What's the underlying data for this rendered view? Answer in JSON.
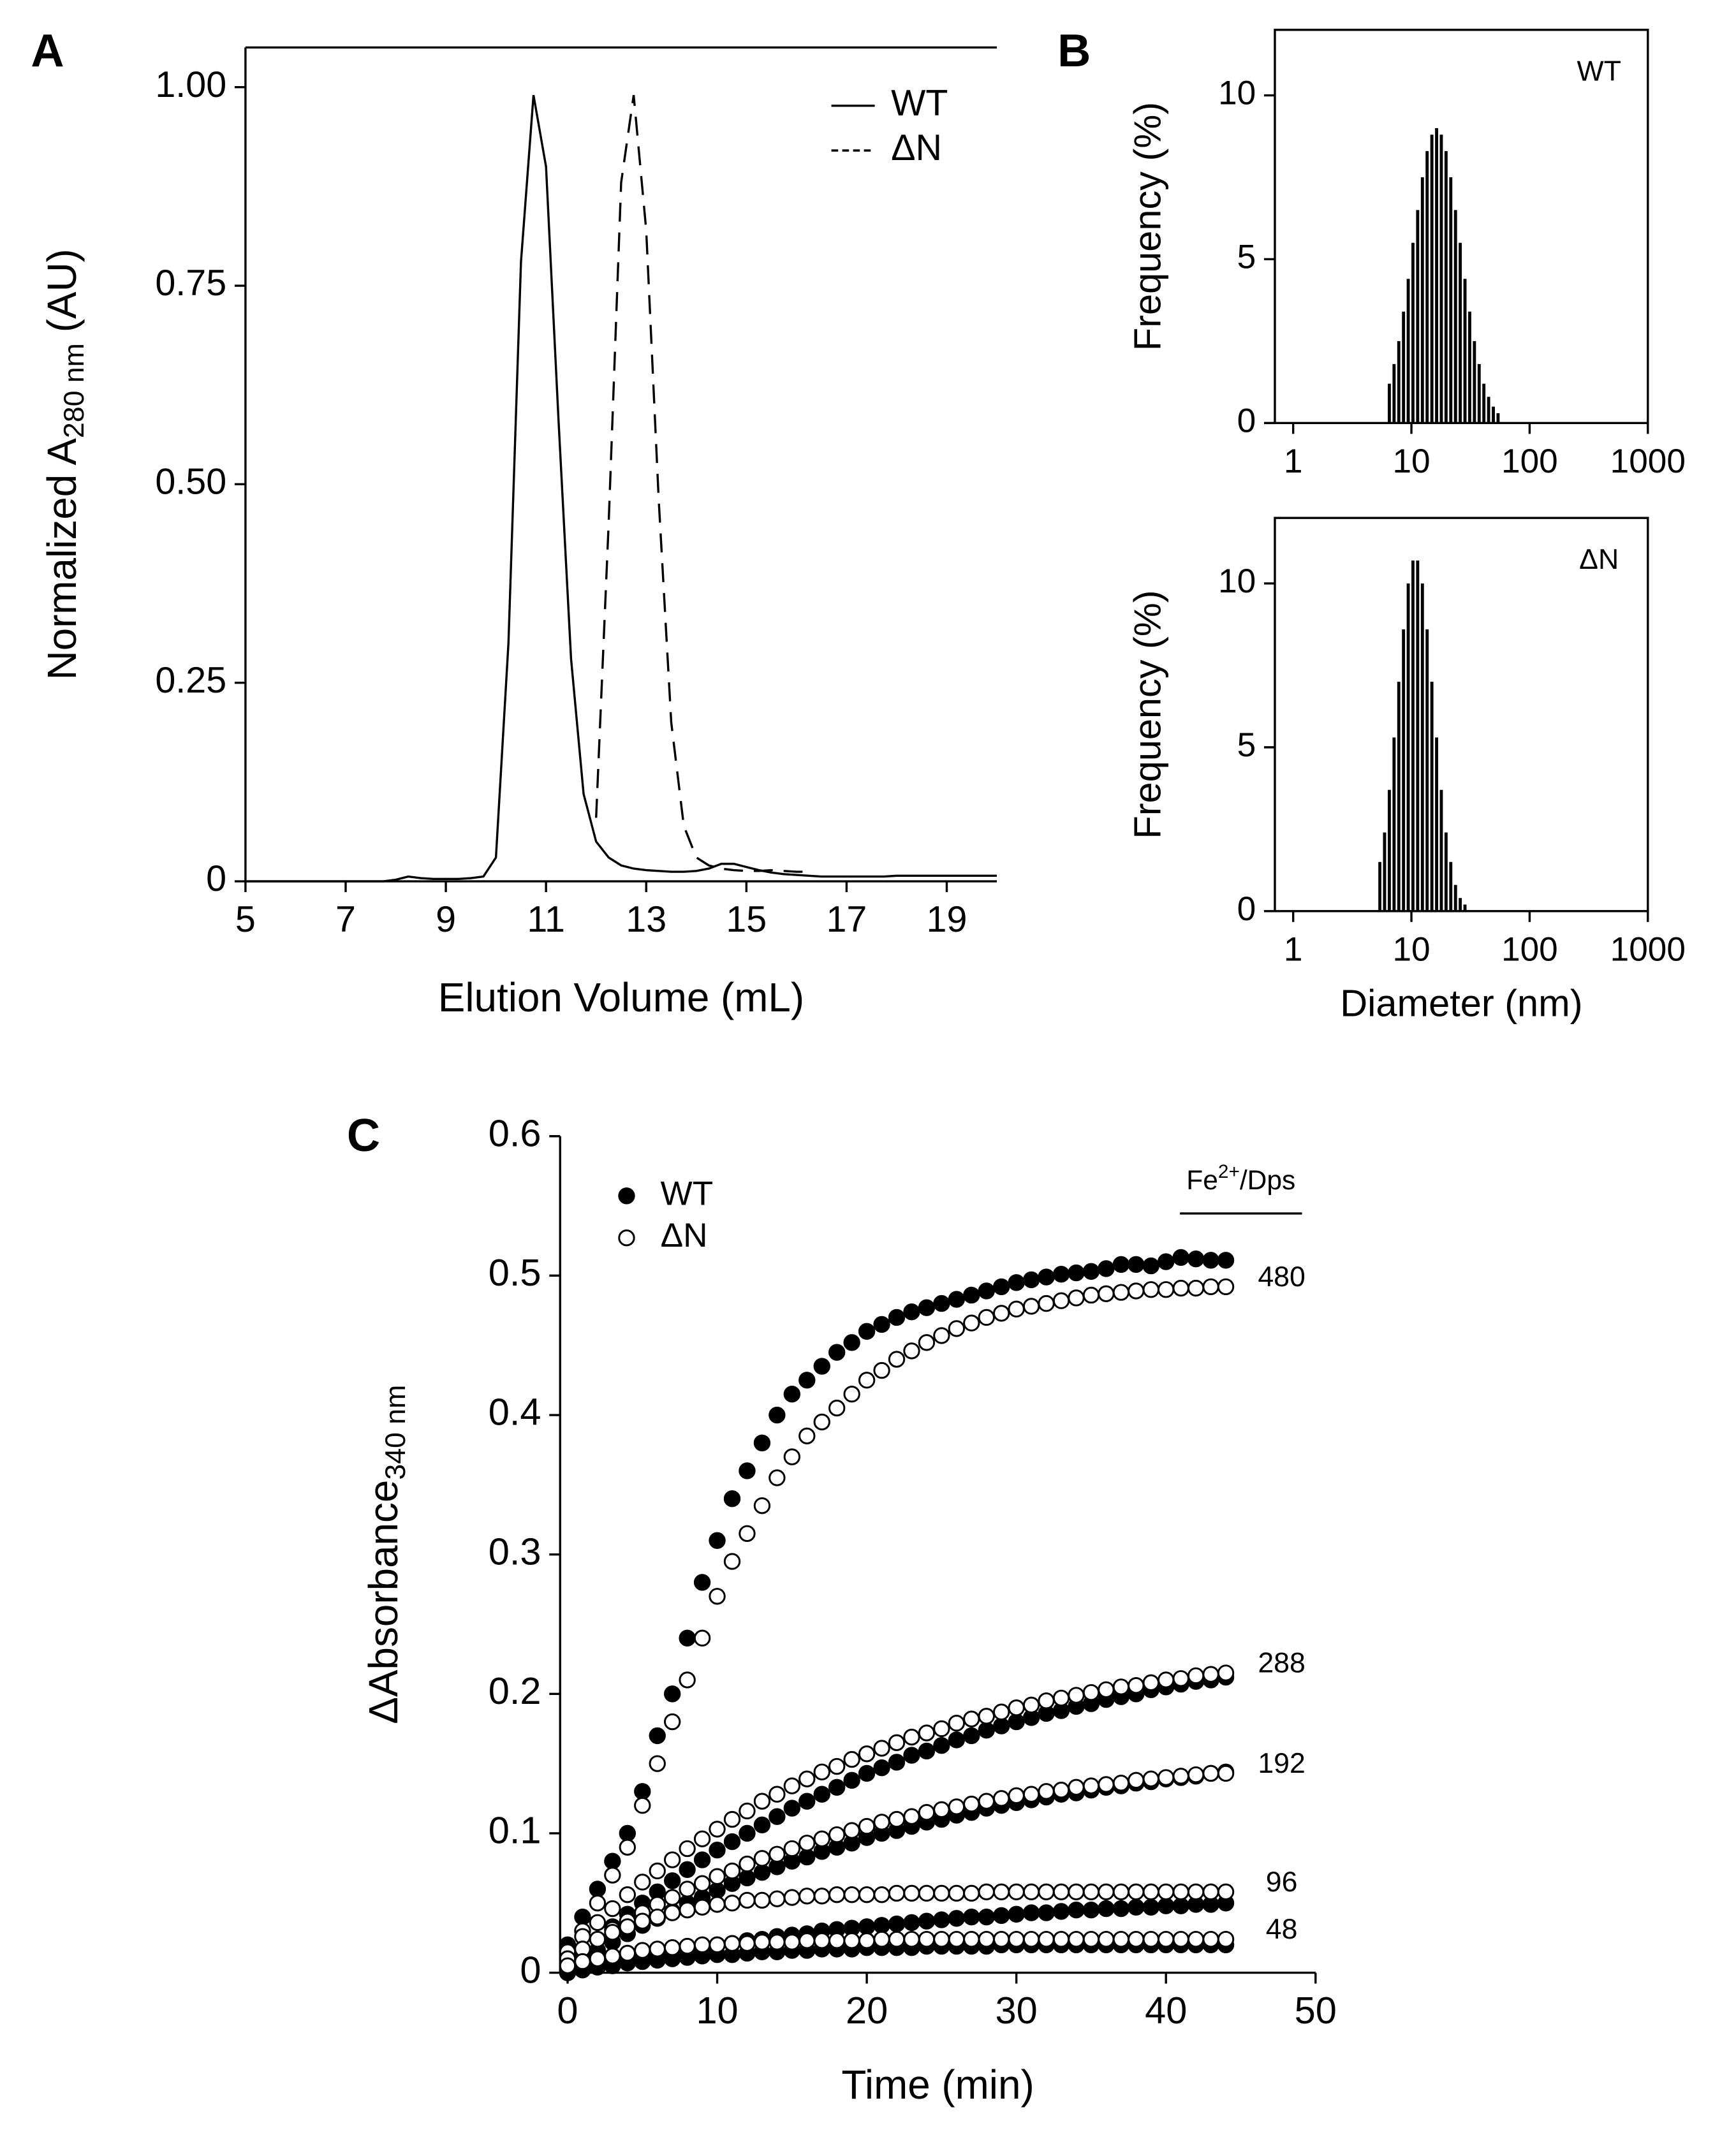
{
  "chart_data": [
    {
      "type": "line",
      "panel_label": "A",
      "xlabel": "Elution Volume (mL)",
      "ylabel": [
        "Normalized A",
        "280 nm",
        "(AU)"
      ],
      "xlim": [
        5,
        20
      ],
      "ylim": [
        0,
        1.05
      ],
      "xticks": [
        5,
        7,
        9,
        11,
        13,
        15,
        17,
        19
      ],
      "yticks": [
        0,
        0.25,
        {
          "value": 0.5,
          "label": "0.50"
        },
        0.75,
        {
          "value": 1,
          "label": "1.00"
        }
      ],
      "legend": "upper right",
      "x": [
        5,
        5.25,
        5.5,
        5.75,
        6,
        6.25,
        6.5,
        6.75,
        7,
        7.25,
        7.5,
        7.75,
        8,
        8.25,
        8.5,
        8.75,
        9,
        9.25,
        9.5,
        9.75,
        10,
        10.25,
        10.5,
        10.75,
        11,
        11.25,
        11.5,
        11.75,
        12,
        12.25,
        12.5,
        12.75,
        13,
        13.25,
        13.5,
        13.75,
        14,
        14.25,
        14.5,
        14.75,
        15,
        15.25,
        15.5,
        15.75,
        16,
        16.25,
        16.5,
        16.75,
        17,
        17.25,
        17.5,
        17.75,
        18,
        18.25,
        18.5,
        18.75,
        19,
        19.25,
        19.5,
        19.75,
        20
      ],
      "series": [
        {
          "name": "WT",
          "color": "#000000",
          "line_style": "solid",
          "values": [
            0,
            0,
            0,
            0,
            0,
            0,
            0,
            0,
            0,
            0,
            0,
            0,
            0.002,
            0.006,
            0.004,
            0.003,
            0.003,
            0.003,
            0.004,
            0.006,
            0.03,
            0.3,
            0.78,
            0.99,
            0.9,
            0.58,
            0.28,
            0.11,
            0.05,
            0.03,
            0.02,
            0.016,
            0.014,
            0.013,
            0.012,
            0.012,
            0.013,
            0.016,
            0.022,
            0.022,
            0.018,
            0.014,
            0.011,
            0.009,
            0.008,
            0.007,
            0.006,
            0.006,
            0.006,
            0.006,
            0.006,
            0.006,
            0.007,
            0.007,
            0.007,
            0.007,
            0.007,
            0.007,
            0.007,
            0.007,
            0.007
          ]
        },
        {
          "name": "ΔN",
          "color": "#000000",
          "line_style": "dashed",
          "values": [
            null,
            null,
            null,
            null,
            null,
            null,
            null,
            null,
            null,
            null,
            null,
            null,
            null,
            null,
            null,
            null,
            null,
            null,
            null,
            null,
            null,
            null,
            null,
            null,
            null,
            null,
            null,
            null,
            0.08,
            0.45,
            0.88,
            0.99,
            0.82,
            0.48,
            0.2,
            0.07,
            0.03,
            0.02,
            0.016,
            0.014,
            0.013,
            0.013,
            0.014,
            0.013,
            0.012,
            0.012,
            null,
            null,
            null,
            null,
            null,
            null,
            null,
            null,
            null,
            null,
            null,
            null,
            null,
            null,
            null
          ]
        }
      ]
    },
    {
      "type": "histogram",
      "panel_label": "B",
      "annotation": "WT",
      "ylabel": [
        "Frequency (%)"
      ],
      "xlog": true,
      "xlim": [
        0.7,
        1000
      ],
      "ylim": [
        0,
        12
      ],
      "xticks": [
        1,
        10,
        100,
        1000
      ],
      "yticks": [
        0,
        5,
        10
      ],
      "color": "#000000",
      "bins": [
        6.31,
        6.92,
        7.59,
        8.32,
        9.12,
        10,
        10.96,
        12.02,
        13.18,
        14.45,
        15.85,
        17.38,
        19.05,
        20.89,
        22.91,
        25.12,
        27.54,
        30.2,
        33.11,
        36.31,
        39.81,
        43.65,
        47.86,
        52.48,
        57.54
      ],
      "values": [
        1.2,
        1.8,
        2.5,
        3.4,
        4.4,
        5.5,
        6.5,
        7.5,
        8.3,
        8.8,
        9.0,
        8.8,
        8.3,
        7.5,
        6.5,
        5.5,
        4.4,
        3.4,
        2.5,
        1.8,
        1.2,
        0.8,
        0.5,
        0.3
      ]
    },
    {
      "type": "histogram",
      "annotation": "ΔN",
      "xlabel": "Diameter (nm)",
      "ylabel": [
        "Frequency (%)"
      ],
      "xlog": true,
      "xlim": [
        0.7,
        1000
      ],
      "ylim": [
        0,
        12
      ],
      "xticks": [
        1,
        10,
        100,
        1000
      ],
      "yticks": [
        0,
        5,
        10
      ],
      "color": "#000000",
      "bins": [
        5.25,
        5.75,
        6.31,
        6.92,
        7.59,
        8.32,
        9.12,
        10,
        10.96,
        12.02,
        13.18,
        14.45,
        15.85,
        17.38,
        19.05,
        20.89,
        22.91,
        25.12,
        27.54,
        30.2
      ],
      "values": [
        1.5,
        2.4,
        3.7,
        5.3,
        7.0,
        8.6,
        10.0,
        10.7,
        10.7,
        10.0,
        8.6,
        7.0,
        5.3,
        3.7,
        2.4,
        1.5,
        0.8,
        0.4,
        0.2
      ]
    },
    {
      "type": "scatter",
      "panel_label": "C",
      "xlabel": "Time (min)",
      "ylabel": [
        "ΔAbsorbance",
        "340 nm"
      ],
      "xlim": [
        -0.5,
        50
      ],
      "ylim": [
        0,
        0.6
      ],
      "xticks": [
        0,
        10,
        20,
        30,
        40,
        50
      ],
      "yticks": [
        0,
        0.1,
        0.2,
        0.3,
        0.4,
        0.5,
        0.6
      ],
      "legend_position": "upper left",
      "legend": [
        {
          "name": "WT",
          "marker": "filled",
          "color": "#000000"
        },
        {
          "name": "ΔN",
          "marker": "open",
          "color": "#000000"
        }
      ],
      "group_title": [
        "Fe",
        "2+",
        "/Dps"
      ],
      "x": [
        0,
        1,
        2,
        3,
        4,
        5,
        6,
        7,
        8,
        9,
        10,
        11,
        12,
        13,
        14,
        15,
        16,
        17,
        18,
        19,
        20,
        21,
        22,
        23,
        24,
        25,
        26,
        27,
        28,
        29,
        30,
        31,
        32,
        33,
        34,
        35,
        36,
        37,
        38,
        39,
        40,
        41,
        42,
        43,
        44
      ],
      "groups": [
        {
          "label": "480",
          "series": [
            {
              "marker": "filled",
              "values": [
                0.02,
                0.04,
                0.06,
                0.08,
                0.1,
                0.13,
                0.17,
                0.2,
                0.24,
                0.28,
                0.31,
                0.34,
                0.36,
                0.38,
                0.4,
                0.415,
                0.425,
                0.435,
                0.445,
                0.452,
                0.46,
                0.465,
                0.47,
                0.474,
                0.477,
                0.48,
                0.483,
                0.486,
                0.489,
                0.492,
                0.495,
                0.497,
                0.499,
                0.501,
                0.502,
                0.503,
                0.505,
                0.508,
                0.508,
                0.507,
                0.51,
                0.513,
                0.512,
                0.511,
                0.511
              ]
            },
            {
              "marker": "open",
              "values": [
                0.01,
                0.03,
                0.05,
                0.07,
                0.09,
                0.12,
                0.15,
                0.18,
                0.21,
                0.24,
                0.27,
                0.295,
                0.315,
                0.335,
                0.355,
                0.37,
                0.385,
                0.395,
                0.405,
                0.415,
                0.425,
                0.432,
                0.44,
                0.446,
                0.452,
                0.457,
                0.462,
                0.466,
                0.47,
                0.473,
                0.476,
                0.478,
                0.48,
                0.482,
                0.484,
                0.486,
                0.487,
                0.488,
                0.489,
                0.49,
                0.49,
                0.491,
                0.491,
                0.492,
                0.492
              ]
            }
          ]
        },
        {
          "label": "288",
          "series": [
            {
              "marker": "filled",
              "values": [
                0.005,
                0.015,
                0.024,
                0.033,
                0.042,
                0.05,
                0.058,
                0.066,
                0.074,
                0.081,
                0.088,
                0.094,
                0.1,
                0.106,
                0.112,
                0.118,
                0.123,
                0.128,
                0.133,
                0.138,
                0.143,
                0.147,
                0.151,
                0.156,
                0.159,
                0.163,
                0.167,
                0.17,
                0.174,
                0.177,
                0.18,
                0.183,
                0.186,
                0.188,
                0.191,
                0.193,
                0.196,
                0.198,
                0.2,
                0.203,
                0.205,
                0.207,
                0.209,
                0.21,
                0.212
              ]
            },
            {
              "marker": "open",
              "values": [
                0.015,
                0.026,
                0.036,
                0.046,
                0.056,
                0.065,
                0.073,
                0.081,
                0.089,
                0.096,
                0.103,
                0.11,
                0.116,
                0.123,
                0.128,
                0.134,
                0.139,
                0.144,
                0.148,
                0.153,
                0.157,
                0.161,
                0.165,
                0.169,
                0.172,
                0.175,
                0.179,
                0.182,
                0.184,
                0.187,
                0.19,
                0.192,
                0.195,
                0.197,
                0.199,
                0.201,
                0.203,
                0.205,
                0.206,
                0.208,
                0.21,
                0.211,
                0.213,
                0.214,
                0.215
              ]
            }
          ]
        },
        {
          "label": "192",
          "series": [
            {
              "marker": "filled",
              "values": [
                0.003,
                0.01,
                0.016,
                0.022,
                0.028,
                0.034,
                0.039,
                0.044,
                0.05,
                0.054,
                0.059,
                0.064,
                0.068,
                0.072,
                0.076,
                0.08,
                0.083,
                0.087,
                0.09,
                0.093,
                0.097,
                0.1,
                0.102,
                0.105,
                0.108,
                0.11,
                0.113,
                0.115,
                0.118,
                0.12,
                0.122,
                0.124,
                0.126,
                0.128,
                0.129,
                0.131,
                0.133,
                0.134,
                0.136,
                0.137,
                0.139,
                0.14,
                0.141,
                0.143,
                0.144
              ]
            },
            {
              "marker": "open",
              "values": [
                0.01,
                0.017,
                0.024,
                0.031,
                0.037,
                0.043,
                0.049,
                0.054,
                0.06,
                0.064,
                0.069,
                0.073,
                0.078,
                0.082,
                0.085,
                0.089,
                0.093,
                0.096,
                0.099,
                0.102,
                0.105,
                0.108,
                0.11,
                0.112,
                0.115,
                0.117,
                0.119,
                0.121,
                0.123,
                0.125,
                0.127,
                0.128,
                0.13,
                0.131,
                0.133,
                0.134,
                0.135,
                0.136,
                0.138,
                0.139,
                0.14,
                0.141,
                0.142,
                0.143,
                0.143
              ]
            }
          ]
        },
        {
          "label": "96",
          "series": [
            {
              "marker": "filled",
              "values": [
                0,
                0.002,
                0.005,
                0.007,
                0.009,
                0.011,
                0.013,
                0.015,
                0.016,
                0.018,
                0.02,
                0.021,
                0.023,
                0.024,
                0.026,
                0.027,
                0.028,
                0.03,
                0.031,
                0.032,
                0.033,
                0.034,
                0.035,
                0.036,
                0.037,
                0.038,
                0.039,
                0.04,
                0.04,
                0.041,
                0.042,
                0.043,
                0.043,
                0.044,
                0.045,
                0.045,
                0.046,
                0.046,
                0.047,
                0.047,
                0.048,
                0.048,
                0.049,
                0.049,
                0.05
              ]
            },
            {
              "marker": "open",
              "values": [
                0.01,
                0.017,
                0.024,
                0.029,
                0.033,
                0.037,
                0.04,
                0.043,
                0.045,
                0.047,
                0.049,
                0.05,
                0.052,
                0.052,
                0.053,
                0.054,
                0.055,
                0.055,
                0.056,
                0.056,
                0.056,
                0.056,
                0.057,
                0.057,
                0.057,
                0.057,
                0.057,
                0.057,
                0.058,
                0.058,
                0.058,
                0.058,
                0.058,
                0.058,
                0.058,
                0.058,
                0.058,
                0.058,
                0.058,
                0.058,
                0.058,
                0.058,
                0.058,
                0.058,
                0.058
              ]
            }
          ]
        },
        {
          "label": "48",
          "series": [
            {
              "marker": "filled",
              "values": [
                0,
                0.002,
                0.004,
                0.005,
                0.007,
                0.008,
                0.009,
                0.01,
                0.011,
                0.012,
                0.013,
                0.013,
                0.014,
                0.015,
                0.015,
                0.016,
                0.016,
                0.017,
                0.017,
                0.017,
                0.018,
                0.018,
                0.018,
                0.018,
                0.019,
                0.019,
                0.019,
                0.019,
                0.019,
                0.02,
                0.02,
                0.02,
                0.02,
                0.02,
                0.02,
                0.02,
                0.02,
                0.02,
                0.02,
                0.02,
                0.02,
                0.02,
                0.02,
                0.02,
                0.02
              ]
            },
            {
              "marker": "open",
              "values": [
                0.005,
                0.008,
                0.01,
                0.012,
                0.014,
                0.016,
                0.017,
                0.018,
                0.019,
                0.02,
                0.02,
                0.021,
                0.021,
                0.022,
                0.022,
                0.022,
                0.023,
                0.023,
                0.023,
                0.023,
                0.023,
                0.024,
                0.024,
                0.024,
                0.024,
                0.024,
                0.024,
                0.024,
                0.024,
                0.024,
                0.024,
                0.024,
                0.024,
                0.024,
                0.024,
                0.024,
                0.024,
                0.024,
                0.024,
                0.024,
                0.024,
                0.024,
                0.024,
                0.024,
                0.024
              ]
            }
          ]
        }
      ]
    }
  ]
}
